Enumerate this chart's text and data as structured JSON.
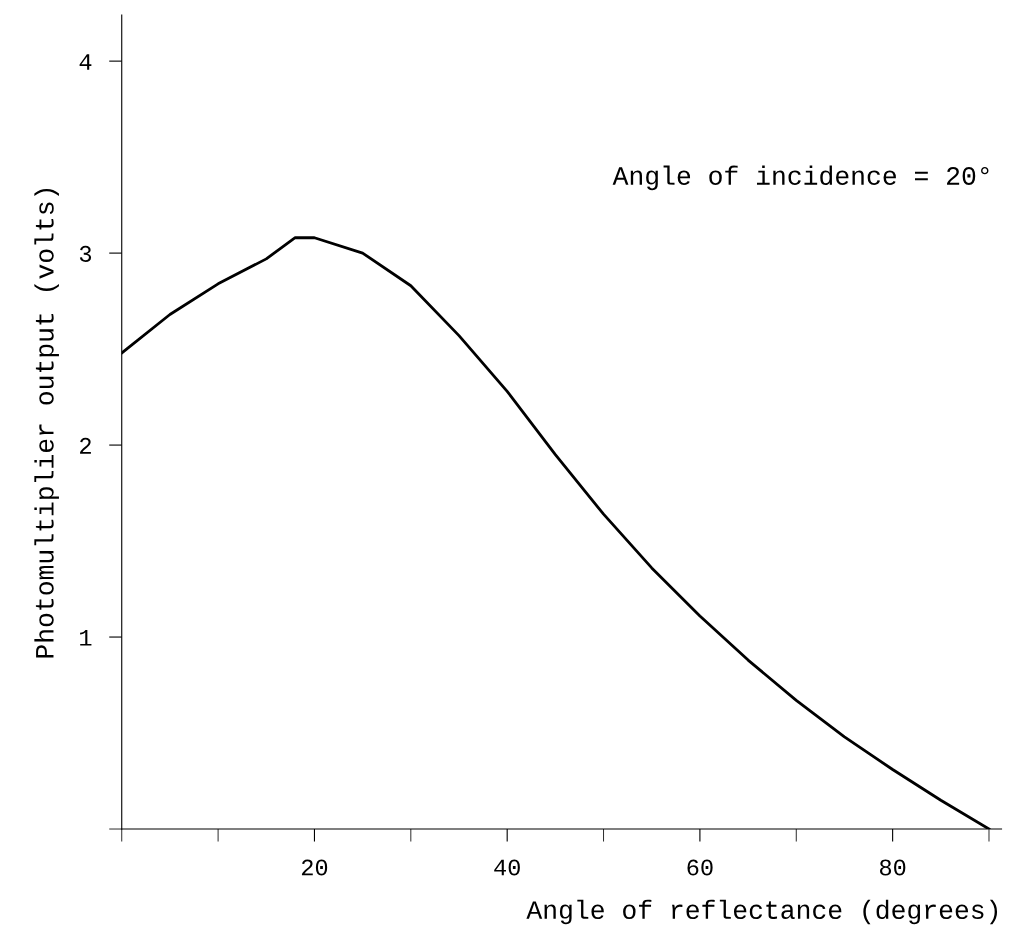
{
  "chart_data": {
    "type": "line",
    "xlabel": "Angle of reflectance (degrees)",
    "ylabel": "Photomultiplier output (volts)",
    "annotations": [
      "Angle of incidence = 20°"
    ],
    "x": [
      0,
      5,
      10,
      15,
      18,
      20,
      25,
      30,
      35,
      40,
      45,
      50,
      55,
      60,
      65,
      70,
      75,
      80,
      85,
      90
    ],
    "series": [
      {
        "color": "#000000",
        "values": [
          2.48,
          2.68,
          2.84,
          2.97,
          3.08,
          3.08,
          3.0,
          2.83,
          2.57,
          2.28,
          1.95,
          1.64,
          1.36,
          1.11,
          0.88,
          0.67,
          0.48,
          0.31,
          0.15,
          0.0
        ]
      }
    ],
    "xlim": [
      0,
      91.3
    ],
    "ylim": [
      0,
      4.24
    ],
    "xticks": [
      {
        "value": 0,
        "label": null
      },
      {
        "value": 10,
        "label": null
      },
      20,
      {
        "value": 30,
        "label": null
      },
      40,
      {
        "value": 50,
        "label": null
      },
      60,
      {
        "value": 70,
        "label": null
      },
      80,
      {
        "value": 90,
        "label": null
      }
    ],
    "yticks": [
      {
        "value": 0,
        "label": null
      },
      1,
      2,
      3,
      4
    ],
    "grid": false,
    "legend": false,
    "marker": "none",
    "line_style": "solid"
  }
}
